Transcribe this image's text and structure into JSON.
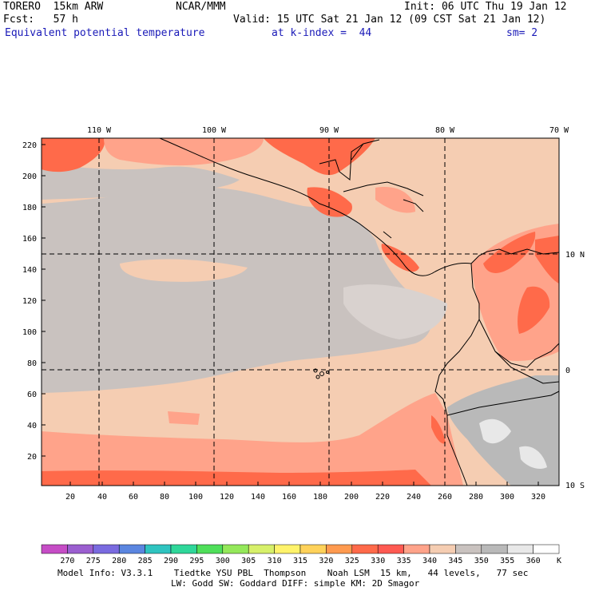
{
  "header": {
    "model": "TORERO  15km ARW",
    "org": "NCAR/MMM",
    "init": "Init: 06 UTC Thu 19 Jan 12",
    "fcst": "Fcst:   57 h",
    "valid": "Valid: 15 UTC Sat 21 Jan 12 (09 CST Sat 21 Jan 12)",
    "field": "Equivalent potential temperature",
    "level": "at k-index =  44",
    "smooth": "sm= 2"
  },
  "top_axis": [
    "110 W",
    "100 W",
    "90 W",
    "80 W",
    "70 W"
  ],
  "right_axis": [
    "10 N",
    "0",
    "10 S"
  ],
  "left_axis": [
    "220",
    "200",
    "180",
    "160",
    "140",
    "120",
    "100",
    "80",
    "60",
    "40",
    "20"
  ],
  "bottom_axis": [
    "20",
    "40",
    "60",
    "80",
    "100",
    "120",
    "140",
    "160",
    "180",
    "200",
    "220",
    "240",
    "260",
    "280",
    "300",
    "320"
  ],
  "colorbar": {
    "labels": [
      "270",
      "275",
      "280",
      "285",
      "290",
      "295",
      "300",
      "305",
      "310",
      "315",
      "320",
      "325",
      "330",
      "335",
      "340",
      "345",
      "350",
      "355",
      "360"
    ],
    "unit": "K",
    "colors": [
      "#c64dc6",
      "#9b5fd0",
      "#7a6be0",
      "#5b86e0",
      "#2fc4c0",
      "#2fd79a",
      "#4fdf5a",
      "#94e85a",
      "#d7f06a",
      "#fff36b",
      "#ffd25a",
      "#ff9a4f",
      "#ff6a4a",
      "#ff5a52",
      "#ffa38a",
      "#f5cdb2",
      "#c9c2bf",
      "#b9b9b9",
      "#e8e8e8",
      "#ffffff"
    ]
  },
  "footer": {
    "line1": "Model Info: V3.3.1    Tiedtke YSU PBL  Thompson    Noah LSM  15 km,   44 levels,   77 sec",
    "line2": "LW: Godd SW: Goddard DIFF: simple KM: 2D Smagor"
  }
}
